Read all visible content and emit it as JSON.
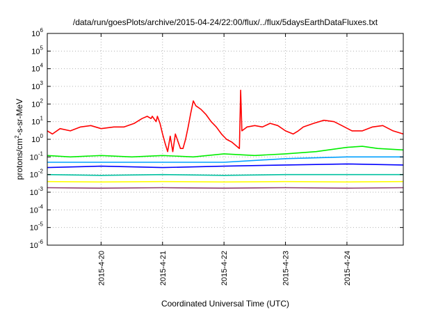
{
  "chart_data": {
    "type": "line",
    "title": "/data/run/goesPlots/archive/2015-04-24/22:00/flux/../flux/5daysEarthDataFluxes.txt",
    "xlabel": "Coordinated Universal Time (UTC)",
    "ylabel": {
      "pre": "protons/cm",
      "sup": "2",
      "post": "-s-sr-MeV"
    },
    "y_scale": "log",
    "ylim": [
      1e-06,
      1000000.0
    ],
    "y_ticks": [
      {
        "base": "10",
        "exp": "-6",
        "value": 1e-06
      },
      {
        "base": "10",
        "exp": "-5",
        "value": 1e-05
      },
      {
        "base": "10",
        "exp": "-4",
        "value": 0.0001
      },
      {
        "base": "10",
        "exp": "-3",
        "value": 0.001
      },
      {
        "base": "10",
        "exp": "-2",
        "value": 0.01
      },
      {
        "base": "10",
        "exp": "-1",
        "value": 0.1
      },
      {
        "base": "10",
        "exp": "0",
        "value": 1
      },
      {
        "base": "10",
        "exp": "1",
        "value": 10
      },
      {
        "base": "10",
        "exp": "2",
        "value": 100
      },
      {
        "base": "10",
        "exp": "3",
        "value": 1000
      },
      {
        "base": "10",
        "exp": "4",
        "value": 10000
      },
      {
        "base": "10",
        "exp": "5",
        "value": 100000
      },
      {
        "base": "10",
        "exp": "6",
        "value": 1000000
      }
    ],
    "xlim": [
      "2015-04-19 03:00",
      "2015-04-24 22:00"
    ],
    "x_ticks": [
      "2015-4-20",
      "2015-4-21",
      "2015-4-22",
      "2015-4-23",
      "2015-4-24"
    ],
    "grid": true,
    "series": [
      {
        "color": "#ff0000",
        "points": [
          [
            "2015-04-19 03:00",
            3
          ],
          [
            "2015-04-19 05:00",
            2
          ],
          [
            "2015-04-19 08:00",
            4
          ],
          [
            "2015-04-19 12:00",
            3
          ],
          [
            "2015-04-19 16:00",
            5
          ],
          [
            "2015-04-19 20:00",
            6
          ],
          [
            "2015-04-20 00:00",
            4
          ],
          [
            "2015-04-20 05:00",
            5
          ],
          [
            "2015-04-20 09:00",
            5
          ],
          [
            "2015-04-20 13:00",
            8
          ],
          [
            "2015-04-20 16:00",
            15
          ],
          [
            "2015-04-20 18:00",
            20
          ],
          [
            "2015-04-20 19:30",
            15
          ],
          [
            "2015-04-20 20:00",
            20
          ],
          [
            "2015-04-20 21:30",
            10
          ],
          [
            "2015-04-20 22:00",
            20
          ],
          [
            "2015-04-20 23:00",
            8
          ],
          [
            "2015-04-21 00:00",
            2
          ],
          [
            "2015-04-21 01:00",
            0.6
          ],
          [
            "2015-04-21 02:00",
            0.2
          ],
          [
            "2015-04-21 03:00",
            1.5
          ],
          [
            "2015-04-21 04:00",
            0.2
          ],
          [
            "2015-04-21 05:00",
            2
          ],
          [
            "2015-04-21 07:00",
            0.3
          ],
          [
            "2015-04-21 08:00",
            0.3
          ],
          [
            "2015-04-21 09:00",
            1
          ],
          [
            "2015-04-21 10:00",
            5
          ],
          [
            "2015-04-21 11:00",
            30
          ],
          [
            "2015-04-21 12:00",
            150
          ],
          [
            "2015-04-21 13:00",
            80
          ],
          [
            "2015-04-21 15:00",
            50
          ],
          [
            "2015-04-21 17:00",
            25
          ],
          [
            "2015-04-21 19:00",
            10
          ],
          [
            "2015-04-21 21:00",
            5
          ],
          [
            "2015-04-21 23:00",
            2
          ],
          [
            "2015-04-22 01:00",
            1
          ],
          [
            "2015-04-22 03:00",
            0.7
          ],
          [
            "2015-04-22 05:00",
            0.4
          ],
          [
            "2015-04-22 06:00",
            0.3
          ],
          [
            "2015-04-22 06:30",
            600
          ],
          [
            "2015-04-22 07:00",
            3
          ],
          [
            "2015-04-22 09:00",
            5
          ],
          [
            "2015-04-22 12:00",
            6
          ],
          [
            "2015-04-22 15:00",
            5
          ],
          [
            "2015-04-22 18:00",
            8
          ],
          [
            "2015-04-22 21:00",
            6
          ],
          [
            "2015-04-23 00:00",
            3
          ],
          [
            "2015-04-23 03:00",
            2
          ],
          [
            "2015-04-23 05:00",
            3
          ],
          [
            "2015-04-23 07:00",
            5
          ],
          [
            "2015-04-23 11:00",
            8
          ],
          [
            "2015-04-23 15:00",
            12
          ],
          [
            "2015-04-23 19:00",
            10
          ],
          [
            "2015-04-23 22:00",
            6
          ],
          [
            "2015-04-24 02:00",
            3
          ],
          [
            "2015-04-24 06:00",
            3
          ],
          [
            "2015-04-24 10:00",
            5
          ],
          [
            "2015-04-24 14:00",
            6
          ],
          [
            "2015-04-24 18:00",
            3
          ],
          [
            "2015-04-24 22:00",
            2
          ]
        ]
      },
      {
        "color": "#00ee00",
        "points": [
          [
            "2015-04-19 03:00",
            0.12
          ],
          [
            "2015-04-19 12:00",
            0.1
          ],
          [
            "2015-04-20 00:00",
            0.12
          ],
          [
            "2015-04-20 12:00",
            0.1
          ],
          [
            "2015-04-21 00:00",
            0.12
          ],
          [
            "2015-04-21 12:00",
            0.1
          ],
          [
            "2015-04-22 00:00",
            0.15
          ],
          [
            "2015-04-22 12:00",
            0.12
          ],
          [
            "2015-04-23 00:00",
            0.15
          ],
          [
            "2015-04-23 12:00",
            0.2
          ],
          [
            "2015-04-24 00:00",
            0.35
          ],
          [
            "2015-04-24 06:00",
            0.4
          ],
          [
            "2015-04-24 12:00",
            0.3
          ],
          [
            "2015-04-24 22:00",
            0.25
          ]
        ]
      },
      {
        "color": "#00a0ff",
        "points": [
          [
            "2015-04-19 03:00",
            0.05
          ],
          [
            "2015-04-20 00:00",
            0.05
          ],
          [
            "2015-04-21 00:00",
            0.05
          ],
          [
            "2015-04-22 00:00",
            0.05
          ],
          [
            "2015-04-23 00:00",
            0.08
          ],
          [
            "2015-04-24 00:00",
            0.1
          ],
          [
            "2015-04-24 22:00",
            0.1
          ]
        ]
      },
      {
        "color": "#0000ff",
        "points": [
          [
            "2015-04-19 03:00",
            0.025
          ],
          [
            "2015-04-20 00:00",
            0.03
          ],
          [
            "2015-04-21 00:00",
            0.025
          ],
          [
            "2015-04-22 00:00",
            0.03
          ],
          [
            "2015-04-23 00:00",
            0.035
          ],
          [
            "2015-04-24 00:00",
            0.04
          ],
          [
            "2015-04-24 22:00",
            0.035
          ]
        ]
      },
      {
        "color": "#00c0a0",
        "points": [
          [
            "2015-04-19 03:00",
            0.01
          ],
          [
            "2015-04-20 00:00",
            0.009
          ],
          [
            "2015-04-21 00:00",
            0.01
          ],
          [
            "2015-04-22 00:00",
            0.009
          ],
          [
            "2015-04-23 00:00",
            0.01
          ],
          [
            "2015-04-24 00:00",
            0.01
          ],
          [
            "2015-04-24 22:00",
            0.01
          ]
        ]
      },
      {
        "color": "#ffff00",
        "points": [
          [
            "2015-04-19 03:00",
            0.004
          ],
          [
            "2015-04-20 00:00",
            0.0038
          ],
          [
            "2015-04-21 00:00",
            0.004
          ],
          [
            "2015-04-22 00:00",
            0.0038
          ],
          [
            "2015-04-23 00:00",
            0.004
          ],
          [
            "2015-04-24 00:00",
            0.0038
          ],
          [
            "2015-04-24 22:00",
            0.004
          ]
        ]
      },
      {
        "color": "#904070",
        "points": [
          [
            "2015-04-19 03:00",
            0.0018
          ],
          [
            "2015-04-20 00:00",
            0.0017
          ],
          [
            "2015-04-21 00:00",
            0.0018
          ],
          [
            "2015-04-22 00:00",
            0.0017
          ],
          [
            "2015-04-23 00:00",
            0.0018
          ],
          [
            "2015-04-24 00:00",
            0.0017
          ],
          [
            "2015-04-24 22:00",
            0.0018
          ]
        ]
      }
    ]
  }
}
